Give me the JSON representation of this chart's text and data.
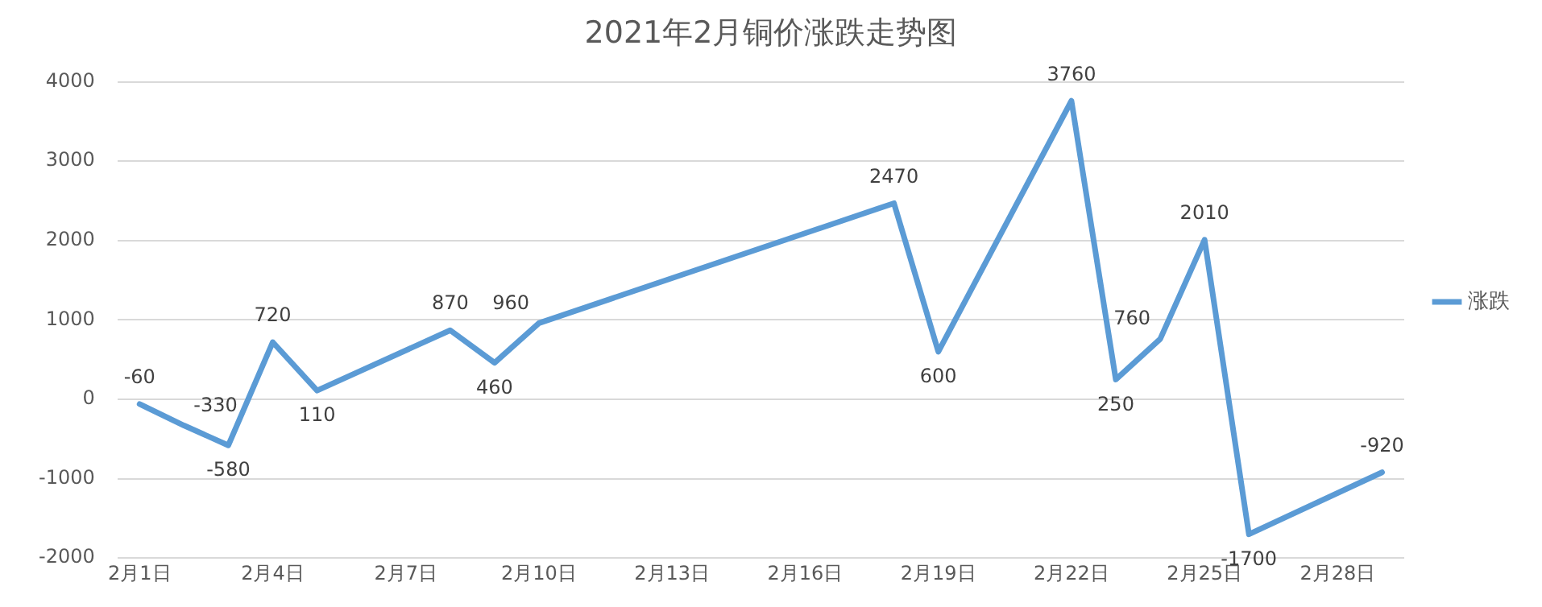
{
  "chart_data": {
    "type": "line",
    "title": "2021年2月铜价涨跌走势图",
    "x": [
      "2021-02-01",
      "2021-02-02",
      "2021-02-03",
      "2021-02-04",
      "2021-02-05",
      "2021-02-08",
      "2021-02-09",
      "2021-02-10",
      "2021-02-18",
      "2021-02-19",
      "2021-02-22",
      "2021-02-23",
      "2021-02-24",
      "2021-02-25",
      "2021-02-26",
      "2021-03-01"
    ],
    "series": [
      {
        "name": "涨跌",
        "color": "#5b9bd5",
        "values": [
          -60,
          -330,
          -580,
          720,
          110,
          870,
          460,
          960,
          2470,
          600,
          3760,
          250,
          760,
          2010,
          -1700,
          -920
        ]
      }
    ],
    "xlim": [
      "2021-01-31T12:00",
      "2021-03-01T12:00"
    ],
    "xticks": [
      {
        "value": "2021-02-01",
        "label": "2月1日"
      },
      {
        "value": "2021-02-04",
        "label": "2月4日"
      },
      {
        "value": "2021-02-07",
        "label": "2月7日"
      },
      {
        "value": "2021-02-10",
        "label": "2月10日"
      },
      {
        "value": "2021-02-13",
        "label": "2月13日"
      },
      {
        "value": "2021-02-16",
        "label": "2月16日"
      },
      {
        "value": "2021-02-19",
        "label": "2月19日"
      },
      {
        "value": "2021-02-22",
        "label": "2月22日"
      },
      {
        "value": "2021-02-25",
        "label": "2月25日"
      },
      {
        "value": "2021-02-28",
        "label": "2月28日"
      }
    ],
    "ylim": [
      -2000,
      4000
    ],
    "yticks": [
      -2000,
      -1000,
      0,
      1000,
      2000,
      3000,
      4000
    ],
    "grid": "y",
    "legend": "right",
    "data_labels": true,
    "marker": "none",
    "line_style": "solid"
  }
}
